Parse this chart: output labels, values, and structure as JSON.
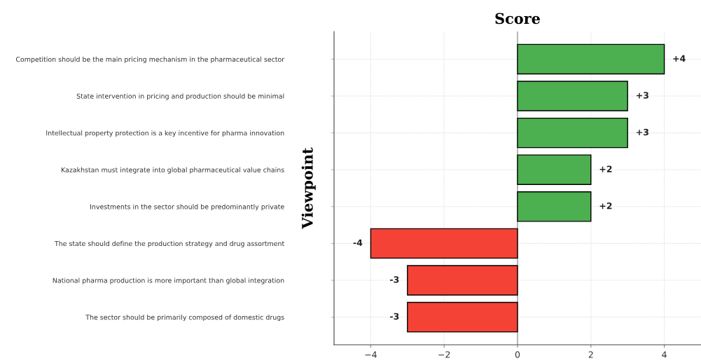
{
  "chart_data": {
    "type": "bar",
    "orientation": "horizontal",
    "title": "Score",
    "ylabel": "Viewpoint",
    "categories": [
      "Competition should be the main pricing mechanism in the pharmaceutical sector",
      "State intervention in pricing and production should be minimal",
      "Intellectual property protection is a key incentive for pharma innovation",
      "Kazakhstan must integrate into global pharmaceutical value chains",
      "Investments in the sector should be predominantly private",
      "The state should define the production strategy and drug assortment",
      "National pharma production is more important than global integration",
      "The sector should be primarily composed of domestic drugs"
    ],
    "values": [
      4,
      3,
      3,
      2,
      2,
      -4,
      -3,
      -3
    ],
    "value_labels": [
      "+4",
      "+3",
      "+3",
      "+2",
      "+2",
      "-4",
      "-3",
      "-3"
    ],
    "colors": [
      "#4caf50",
      "#4caf50",
      "#4caf50",
      "#4caf50",
      "#4caf50",
      "#f44336",
      "#f44336",
      "#f44336"
    ],
    "xlim": [
      -5,
      5
    ],
    "xticks": [
      {
        "value": -4,
        "label": "−4"
      },
      {
        "value": -2,
        "label": "−2"
      },
      0,
      2,
      4
    ],
    "ref_lines": [
      {
        "axis": "x",
        "value": 0,
        "color": "#aaaaaa"
      }
    ],
    "grid": true
  }
}
